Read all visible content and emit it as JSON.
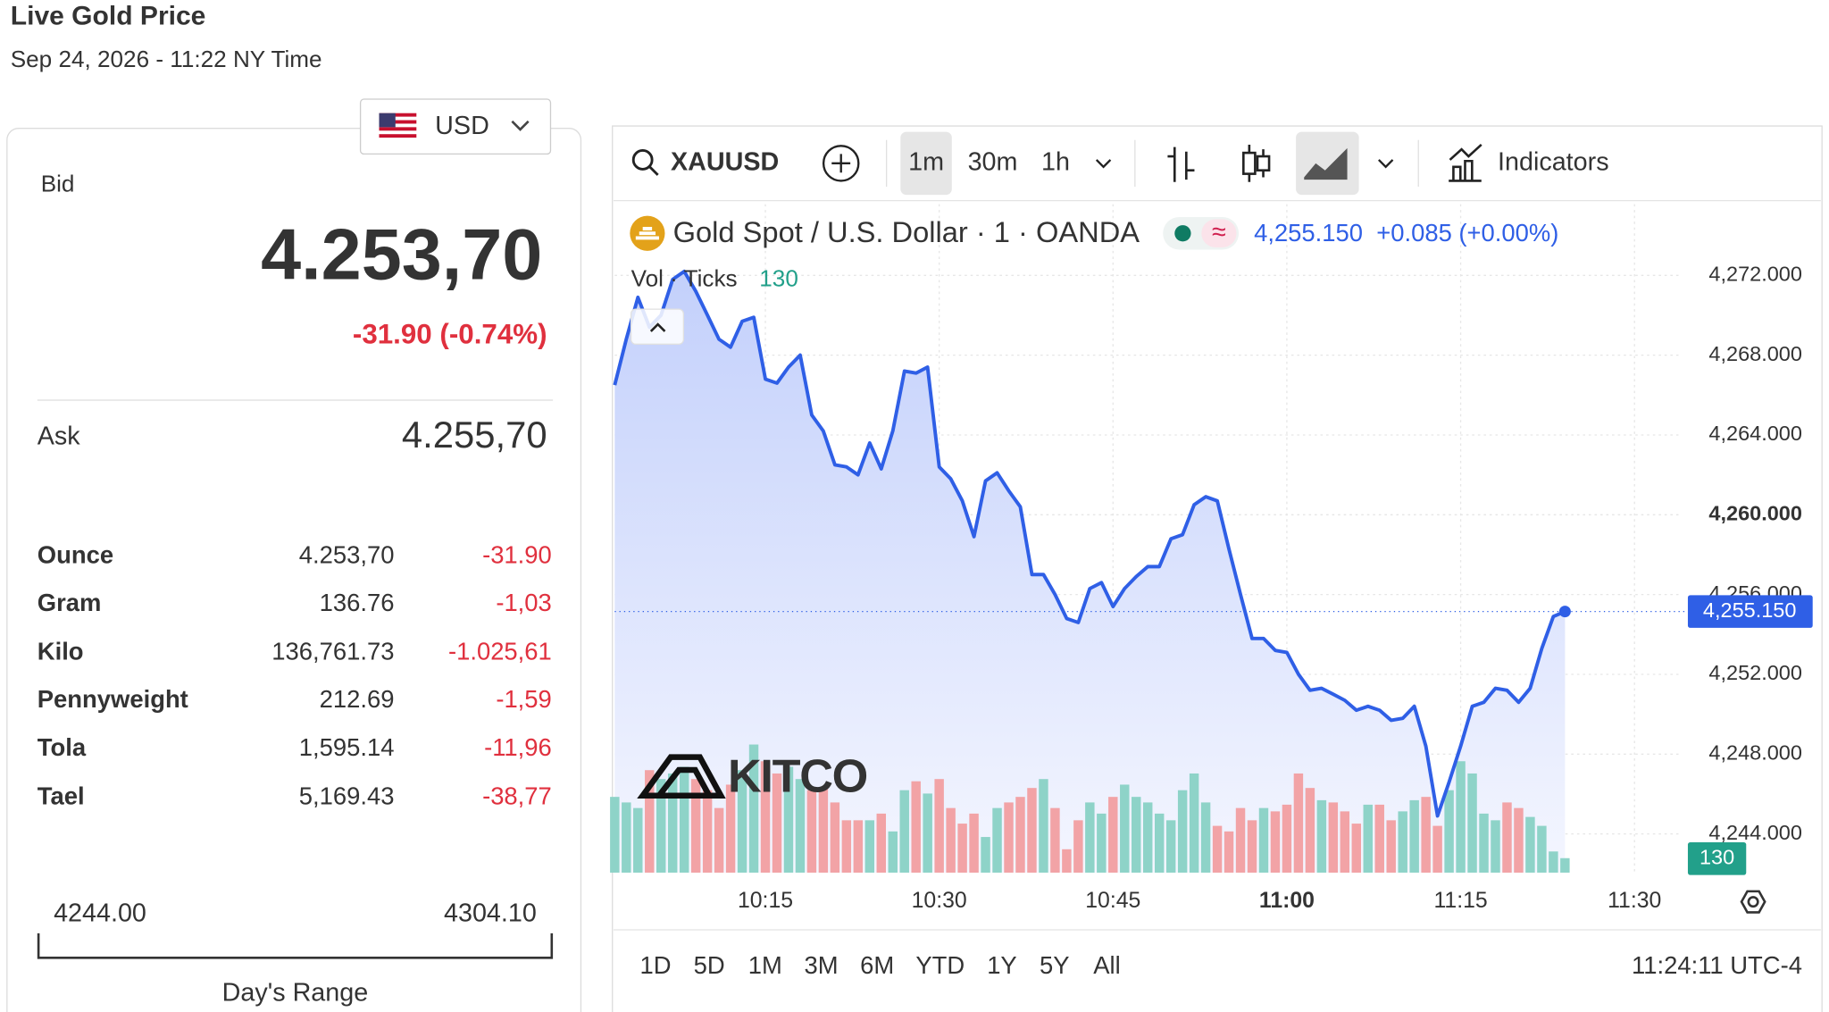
{
  "header": {
    "title": "Live Gold Price",
    "timestamp": "Sep 24, 2026 - 11:22 NY Time"
  },
  "currency": "USD",
  "bid": {
    "label": "Bid",
    "value": "4.253,70",
    "change": "-31.90 (-0.74%)"
  },
  "ask": {
    "label": "Ask",
    "value": "4.255,70"
  },
  "units": {
    "rows": [
      [
        "Ounce",
        "4.253,70",
        "-31.90"
      ],
      [
        "Gram",
        "136.76",
        "-1,03"
      ],
      [
        "Kilo",
        "136,761.73",
        "-1.025,61"
      ],
      [
        "Pennyweight",
        "212.69",
        "-1,59"
      ],
      [
        "Tola",
        "1,595.14",
        "-11,96"
      ],
      [
        "Tael",
        "5,169.43",
        "-38,77"
      ]
    ]
  },
  "range": {
    "low": "4244.00",
    "high": "4304.10",
    "label": "Day's Range"
  },
  "toolbar": {
    "symbol": "XAUUSD",
    "intervals": [
      "1m",
      "30m",
      "1h"
    ],
    "indicators": "Indicators"
  },
  "legend": {
    "name": "Gold Spot / U.S. Dollar · 1 · OANDA",
    "price": "4,255.150",
    "change": "+0.085 (+0.00%)",
    "vol_label": "Vol · Ticks",
    "vol_value": "130"
  },
  "brand": "KITCO",
  "periods": [
    "1D",
    "5D",
    "1M",
    "3M",
    "6M",
    "YTD",
    "1Y",
    "5Y",
    "All"
  ],
  "clock": "11:24:11 UTC-4",
  "chart_data": {
    "type": "line",
    "x": [
      "10:02",
      "10:03",
      "10:04",
      "10:05",
      "10:06",
      "10:07",
      "10:08",
      "10:09",
      "10:10",
      "10:11",
      "10:12",
      "10:13",
      "10:14",
      "10:15",
      "10:16",
      "10:17",
      "10:18",
      "10:19",
      "10:20",
      "10:21",
      "10:22",
      "10:23",
      "10:24",
      "10:25",
      "10:26",
      "10:27",
      "10:28",
      "10:29",
      "10:30",
      "10:31",
      "10:32",
      "10:33",
      "10:34",
      "10:35",
      "10:36",
      "10:37",
      "10:38",
      "10:39",
      "10:40",
      "10:41",
      "10:42",
      "10:43",
      "10:44",
      "10:45",
      "10:46",
      "10:47",
      "10:48",
      "10:49",
      "10:50",
      "10:51",
      "10:52",
      "10:53",
      "10:54",
      "10:55",
      "10:56",
      "10:57",
      "10:58",
      "10:59",
      "11:00",
      "11:01",
      "11:02",
      "11:03",
      "11:04",
      "11:05",
      "11:06",
      "11:07",
      "11:08",
      "11:09",
      "11:10",
      "11:11",
      "11:12",
      "11:13",
      "11:14",
      "11:15",
      "11:16",
      "11:17",
      "11:18",
      "11:19",
      "11:20",
      "11:21",
      "11:22",
      "11:23",
      "11:24"
    ],
    "values": [
      4266.5,
      4268.8,
      4270.9,
      4269.4,
      4270.0,
      4271.8,
      4272.2,
      4271.2,
      4270.0,
      4268.8,
      4268.4,
      4269.7,
      4269.9,
      4266.8,
      4266.6,
      4267.4,
      4268.0,
      4265.0,
      4264.2,
      4262.5,
      4262.4,
      4262.0,
      4263.6,
      4262.3,
      4264.2,
      4267.2,
      4267.1,
      4267.4,
      4262.4,
      4261.8,
      4260.7,
      4258.9,
      4261.7,
      4262.1,
      4261.2,
      4260.4,
      4257.0,
      4257.0,
      4256.0,
      4254.8,
      4254.6,
      4256.3,
      4256.6,
      4255.4,
      4256.3,
      4256.9,
      4257.4,
      4257.4,
      4258.8,
      4259.0,
      4260.5,
      4260.9,
      4260.7,
      4258.3,
      4256.0,
      4253.8,
      4253.8,
      4253.2,
      4253.1,
      4252.0,
      4251.2,
      4251.3,
      4251.0,
      4250.7,
      4250.2,
      4250.4,
      4250.2,
      4249.7,
      4249.8,
      4250.4,
      4248.4,
      4244.9,
      4246.6,
      4248.4,
      4250.4,
      4250.6,
      4251.3,
      4251.2,
      4250.6,
      4251.3,
      4253.3,
      4254.9,
      4255.15
    ],
    "volume": [
      680,
      630,
      580,
      920,
      840,
      890,
      950,
      840,
      740,
      580,
      790,
      920,
      1150,
      1000,
      890,
      950,
      840,
      740,
      760,
      630,
      470,
      470,
      470,
      530,
      370,
      740,
      820,
      710,
      840,
      580,
      440,
      530,
      320,
      580,
      630,
      680,
      760,
      840,
      580,
      210,
      470,
      630,
      530,
      680,
      790,
      680,
      630,
      530,
      470,
      740,
      890,
      630,
      420,
      370,
      580,
      470,
      580,
      550,
      610,
      890,
      760,
      650,
      630,
      550,
      440,
      610,
      610,
      470,
      550,
      650,
      680,
      420,
      740,
      1000,
      890,
      530,
      470,
      630,
      580,
      500,
      420,
      190,
      130
    ],
    "xlim": [
      "10:02",
      "11:34"
    ],
    "xticks": [
      "10:15",
      "10:30",
      "10:45",
      "11:00",
      "11:15",
      "11:30"
    ],
    "ylim": [
      4242.06,
      4275.57
    ],
    "yticks": [
      {
        "value": 4244,
        "label": "4,244.000"
      },
      {
        "value": 4248,
        "label": "4,248.000"
      },
      {
        "value": 4252,
        "label": "4,252.000"
      },
      {
        "value": 4256,
        "label": "4,256.000"
      },
      {
        "value": 4260,
        "label": "4,260.000"
      },
      {
        "value": 4264,
        "label": "4,264.000"
      },
      {
        "value": 4268,
        "label": "4,268.000"
      },
      {
        "value": 4272,
        "label": "4,272.000"
      }
    ],
    "volume_lim": [
      0,
      6000
    ],
    "color": "#2f5fe6",
    "up_color": "#8ed3c8",
    "down_color": "#f2a3a6",
    "grid": true
  }
}
